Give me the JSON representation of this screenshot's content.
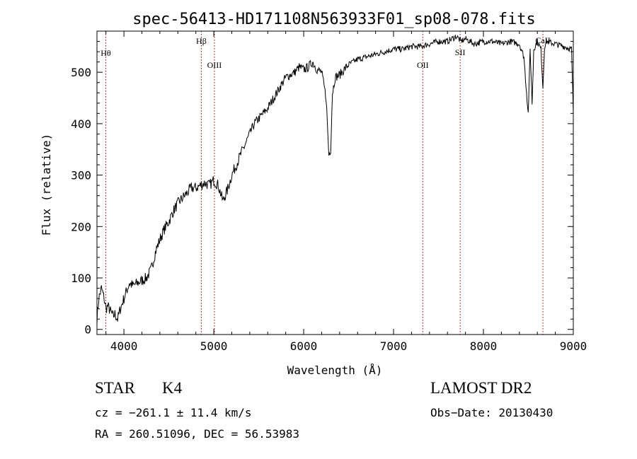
{
  "chart_data": {
    "type": "line",
    "title": "spec-56413-HD171108N563933F01_sp08-078.fits",
    "xlabel": "Wavelength (Å)",
    "ylabel": "Flux (relative)",
    "xlim": [
      3700,
      9000
    ],
    "ylim": [
      -10,
      580
    ],
    "xticks": [
      4000,
      5000,
      6000,
      7000,
      8000,
      9000
    ],
    "yticks": [
      0,
      100,
      200,
      300,
      400,
      500
    ],
    "grid": false,
    "line_color": "#000000",
    "marker_color": "#8b0000",
    "series": [
      {
        "x": [
          3700,
          3720,
          3750,
          3780,
          3800,
          3820,
          3850,
          3880,
          3900,
          3930,
          3960,
          4000,
          4030,
          4060,
          4100,
          4150,
          4200,
          4250,
          4300,
          4350,
          4400,
          4450,
          4500,
          4550,
          4600,
          4650,
          4700,
          4750,
          4800,
          4850,
          4900,
          4950,
          5000,
          5050,
          5100,
          5150,
          5200,
          5250,
          5300,
          5350,
          5400,
          5450,
          5500,
          5550,
          5600,
          5650,
          5700,
          5750,
          5800,
          5850,
          5900,
          5950,
          6000,
          6050,
          6100,
          6150,
          6200,
          6250,
          6280,
          6300,
          6320,
          6350,
          6400,
          6450,
          6500,
          6550,
          6600,
          6700,
          6800,
          6900,
          7000,
          7100,
          7200,
          7300,
          7400,
          7500,
          7600,
          7650,
          7700,
          7750,
          7800,
          7850,
          7900,
          8000,
          8100,
          8200,
          8300,
          8400,
          8450,
          8498,
          8520,
          8542,
          8560,
          8600,
          8640,
          8662,
          8680,
          8700,
          8800,
          8900,
          8980,
          9000
        ],
        "y": [
          20,
          60,
          80,
          60,
          40,
          45,
          35,
          25,
          30,
          20,
          40,
          60,
          75,
          90,
          85,
          90,
          95,
          100,
          115,
          150,
          175,
          195,
          210,
          230,
          245,
          255,
          265,
          275,
          275,
          280,
          285,
          280,
          290,
          280,
          250,
          270,
          300,
          320,
          340,
          360,
          380,
          400,
          410,
          420,
          430,
          445,
          460,
          475,
          490,
          495,
          500,
          510,
          505,
          510,
          520,
          505,
          500,
          450,
          340,
          350,
          460,
          490,
          495,
          505,
          515,
          520,
          525,
          530,
          535,
          540,
          545,
          545,
          550,
          550,
          555,
          560,
          560,
          565,
          570,
          560,
          565,
          560,
          555,
          560,
          560,
          555,
          560,
          555,
          530,
          420,
          545,
          440,
          545,
          560,
          545,
          470,
          550,
          560,
          555,
          550,
          545,
          420
        ]
      }
    ],
    "lines": [
      {
        "label": "Hθ",
        "wavelength": 3798
      },
      {
        "label": "Hβ",
        "wavelength": 4861
      },
      {
        "label": "OIII",
        "wavelength": 5007
      },
      {
        "label": "OII",
        "wavelength": 7325
      },
      {
        "label": "SII",
        "wavelength": 7741
      },
      {
        "label": "CaII",
        "wavelength": 8662
      }
    ]
  },
  "info": {
    "object_class": "STAR",
    "subclass": "K4",
    "survey": "LAMOST DR2",
    "cz": "cz = −261.1 ± 11.4 km/s",
    "obs_date": "Obs−Date: 20130430",
    "radec": "RA = 260.51096, DEC =  56.53983"
  }
}
